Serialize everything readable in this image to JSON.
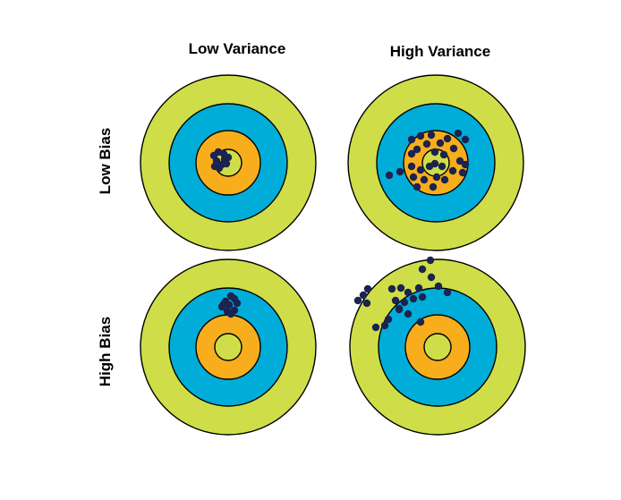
{
  "columns": {
    "left": "Low Variance",
    "right": "High Variance"
  },
  "rows": {
    "top": "Low Bias",
    "bottom": "High Bias"
  },
  "colors": {
    "outer": "#cfde48",
    "middle": "#00add8",
    "inner": "#f8ad1c",
    "bull": "#cfde48",
    "stroke": "#000000",
    "dot": "#1b2350"
  },
  "targets": [
    {
      "name": "low-bias-low-variance"
    },
    {
      "name": "low-bias-high-variance"
    },
    {
      "name": "high-bias-low-variance"
    },
    {
      "name": "high-bias-high-variance"
    }
  ]
}
